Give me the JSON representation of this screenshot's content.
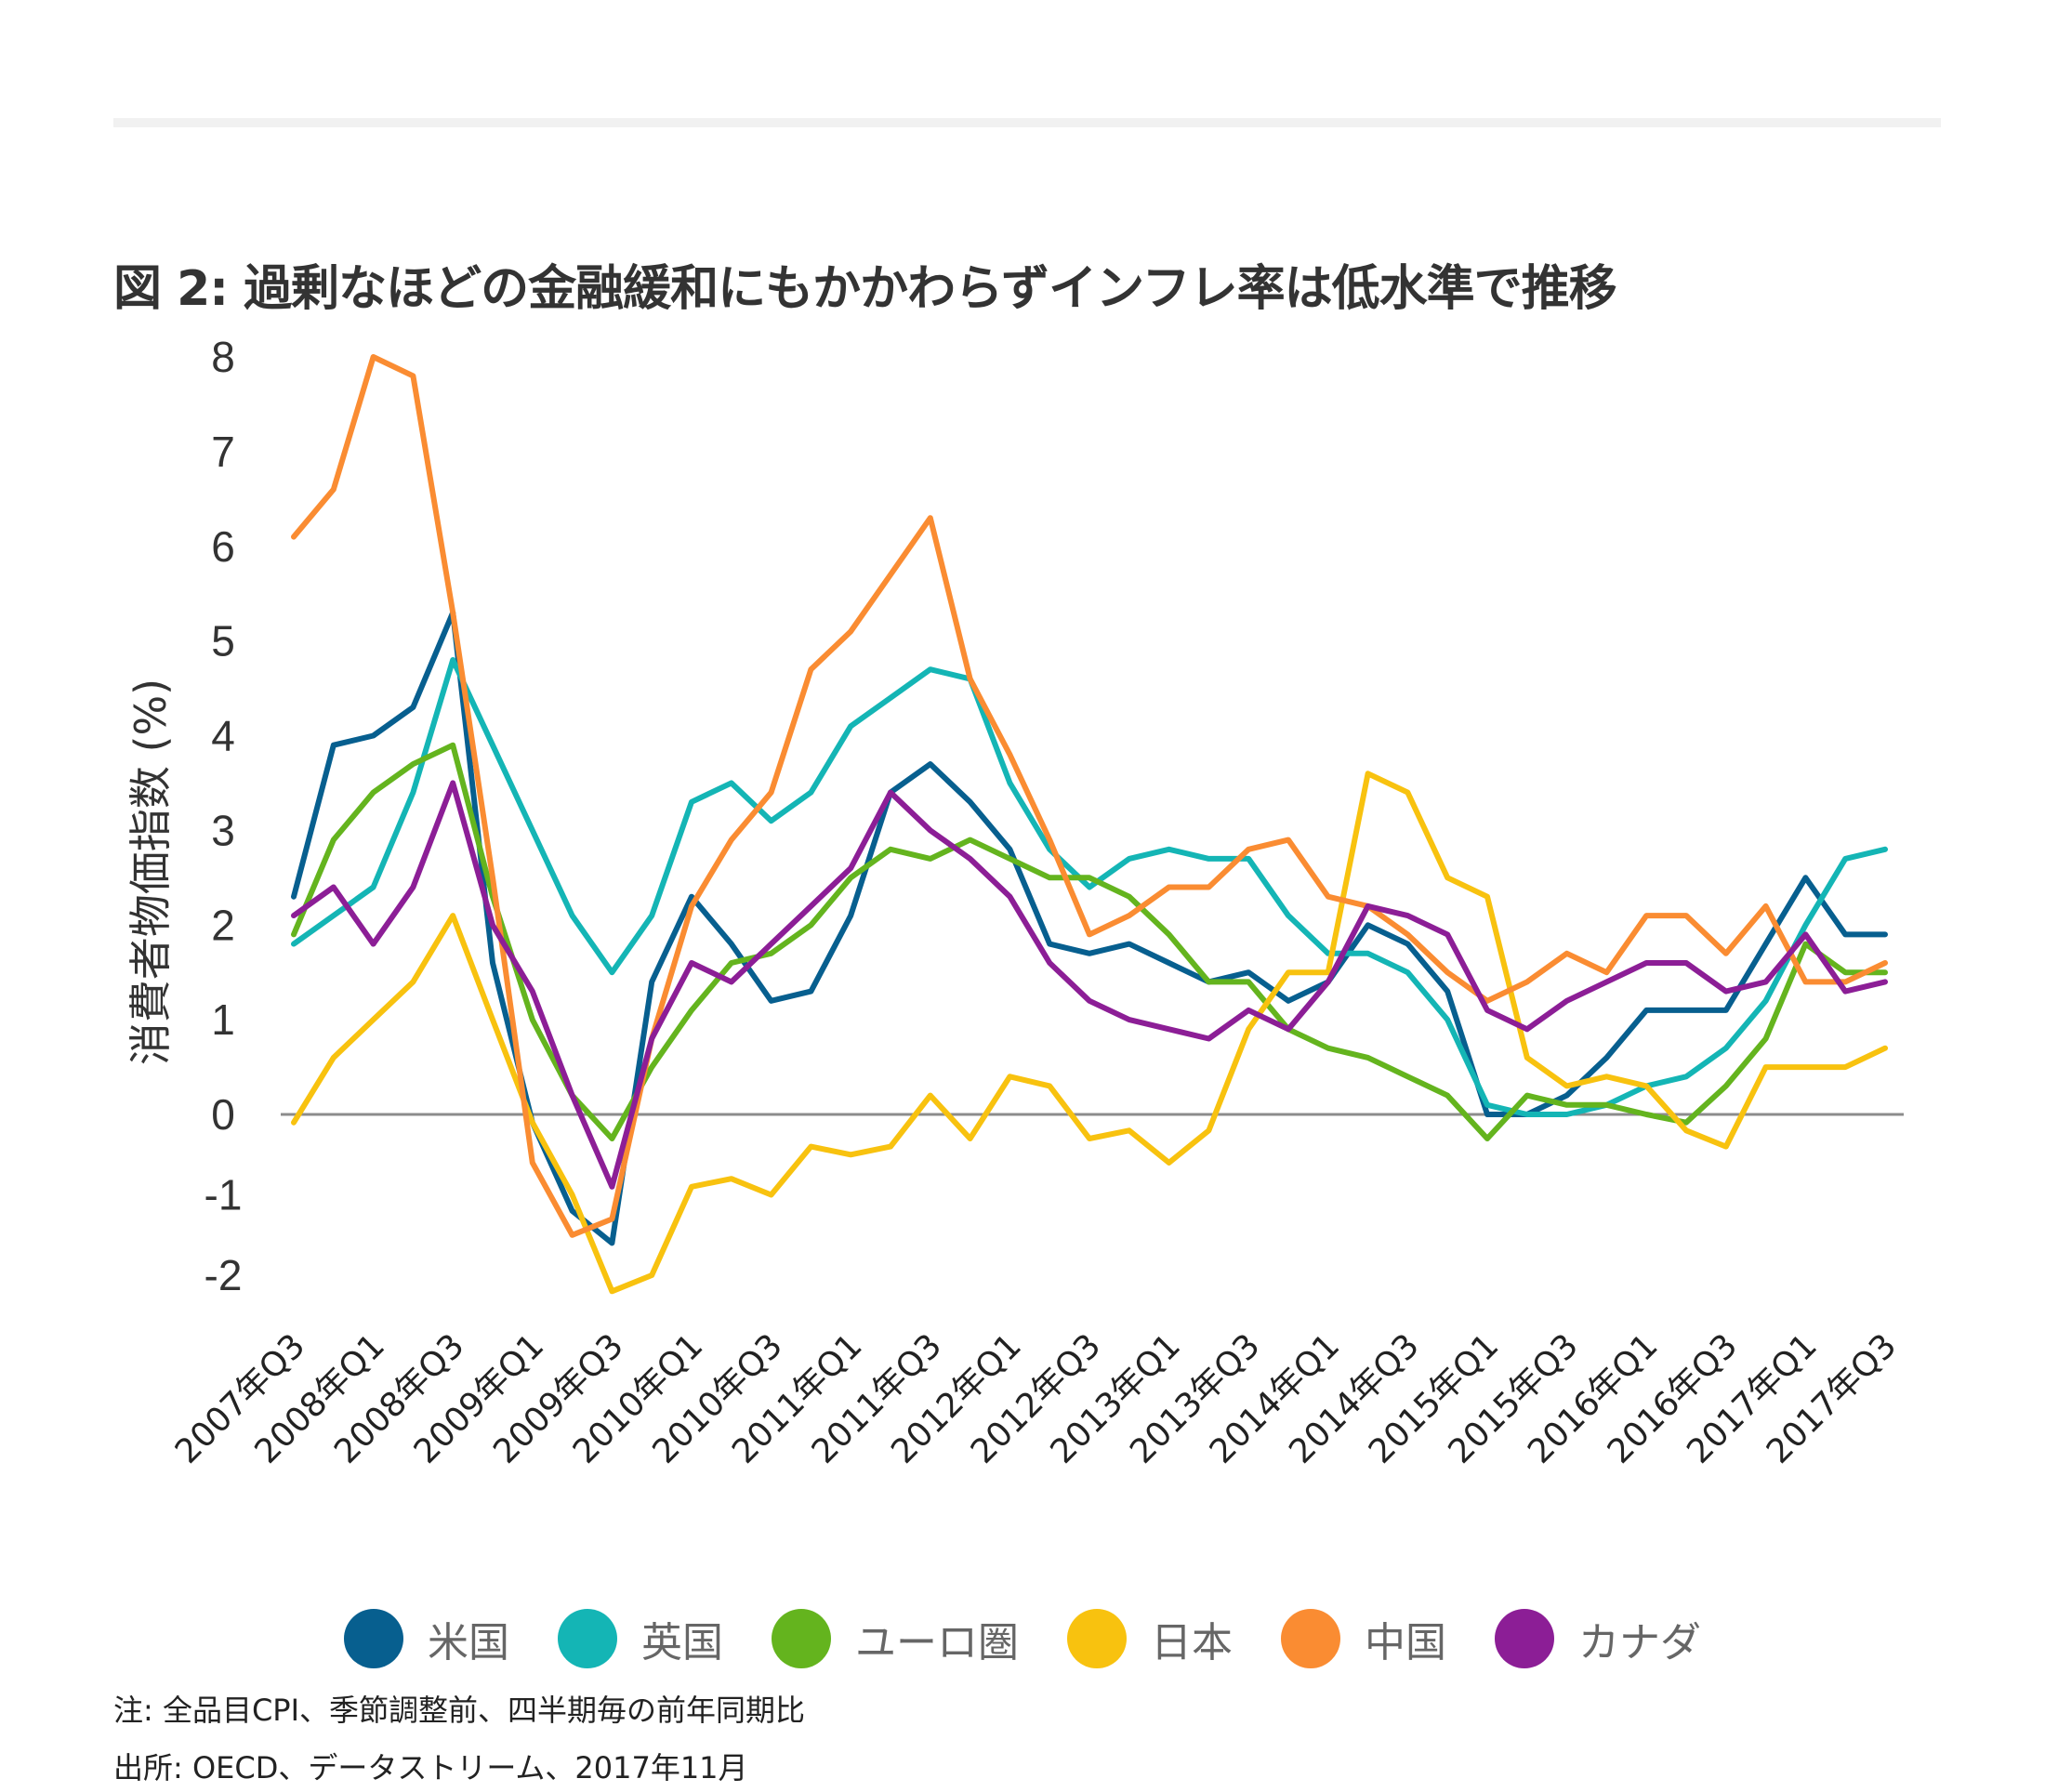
{
  "title": "図 2: 過剰なほどの金融緩和にもかかわらずインフレ率は低水準で推移",
  "note": "注: 全品目CPI、季節調整前、四半期毎の前年同期比",
  "source": "出所: OECD、データストリーム、2017年11月",
  "chart_data": {
    "type": "line",
    "ylabel": "消費者物価指数 (%)",
    "ylim": [
      -2.2,
      8.3
    ],
    "yticks": [
      8,
      7,
      6,
      5,
      4,
      3,
      2,
      1,
      0,
      -1,
      -2
    ],
    "zero_line": true,
    "grid": false,
    "legend_position": "bottom",
    "x": [
      "2007年Q3",
      "2007年Q4",
      "2008年Q1",
      "2008年Q2",
      "2008年Q3",
      "2008年Q4",
      "2009年Q1",
      "2009年Q2",
      "2009年Q3",
      "2009年Q4",
      "2010年Q1",
      "2010年Q2",
      "2010年Q3",
      "2010年Q4",
      "2011年Q1",
      "2011年Q2",
      "2011年Q3",
      "2011年Q4",
      "2012年Q1",
      "2012年Q2",
      "2012年Q3",
      "2012年Q4",
      "2013年Q1",
      "2013年Q2",
      "2013年Q3",
      "2013年Q4",
      "2014年Q1",
      "2014年Q2",
      "2014年Q3",
      "2014年Q4",
      "2015年Q1",
      "2015年Q2",
      "2015年Q3",
      "2015年Q4",
      "2016年Q1",
      "2016年Q2",
      "2016年Q3",
      "2016年Q4",
      "2017年Q1",
      "2017年Q2",
      "2017年Q3"
    ],
    "x_tick_labels": [
      "2007年Q3",
      "2008年Q1",
      "2008年Q3",
      "2009年Q1",
      "2009年Q3",
      "2010年Q1",
      "2010年Q3",
      "2011年Q1",
      "2011年Q3",
      "2012年Q1",
      "2012年Q3",
      "2013年Q1",
      "2013年Q3",
      "2014年Q1",
      "2014年Q3",
      "2015年Q1",
      "2015年Q3",
      "2016年Q1",
      "2016年Q3",
      "2017年Q1",
      "2017年Q3"
    ],
    "series": [
      {
        "name": "米国",
        "color": "#075f8f",
        "values": [
          2.3,
          3.9,
          4.0,
          4.3,
          5.3,
          1.6,
          -0.1,
          -1.2,
          -1.6,
          1.4,
          2.3,
          1.8,
          1.2,
          1.3,
          2.1,
          3.4,
          3.7,
          3.3,
          2.8,
          1.8,
          1.7,
          1.8,
          1.6,
          1.4,
          1.5,
          1.2,
          1.4,
          2.0,
          1.8,
          1.3,
          0.0,
          0.0,
          0.2,
          0.6,
          1.1,
          1.1,
          1.1,
          1.8,
          2.5,
          1.9,
          1.9
        ]
      },
      {
        "name": "英国",
        "color": "#14b5b5",
        "values": [
          1.8,
          2.1,
          2.4,
          3.4,
          4.8,
          3.9,
          3.0,
          2.1,
          1.5,
          2.1,
          3.3,
          3.5,
          3.1,
          3.4,
          4.1,
          4.4,
          4.7,
          4.6,
          3.5,
          2.8,
          2.4,
          2.7,
          2.8,
          2.7,
          2.7,
          2.1,
          1.7,
          1.7,
          1.5,
          1.0,
          0.1,
          0.0,
          0.0,
          0.1,
          0.3,
          0.4,
          0.7,
          1.2,
          2.0,
          2.7,
          2.8
        ]
      },
      {
        "name": "ユーロ圏",
        "color": "#64b41e",
        "values": [
          1.9,
          2.9,
          3.4,
          3.7,
          3.9,
          2.3,
          1.0,
          0.2,
          -0.3,
          0.5,
          1.1,
          1.6,
          1.7,
          2.0,
          2.5,
          2.8,
          2.7,
          2.9,
          2.7,
          2.5,
          2.5,
          2.3,
          1.9,
          1.4,
          1.4,
          0.9,
          0.7,
          0.6,
          0.4,
          0.2,
          -0.3,
          0.2,
          0.1,
          0.1,
          0.0,
          -0.1,
          0.3,
          0.8,
          1.8,
          1.5,
          1.5
        ]
      },
      {
        "name": "日本",
        "color": "#f8c20f",
        "values": [
          -0.1,
          0.6,
          1.0,
          1.4,
          2.1,
          1.0,
          -0.1,
          -1.0,
          -2.2,
          -2.0,
          -0.9,
          -0.8,
          -1.0,
          -0.4,
          -0.5,
          -0.4,
          0.2,
          -0.3,
          0.4,
          0.3,
          -0.3,
          -0.2,
          -0.6,
          -0.2,
          0.9,
          1.5,
          1.5,
          3.6,
          3.4,
          2.5,
          2.3,
          0.6,
          0.3,
          0.4,
          0.3,
          -0.2,
          -0.4,
          0.5,
          0.5,
          0.5,
          0.7
        ]
      },
      {
        "name": "中国",
        "color": "#fa8c32",
        "values": [
          6.1,
          6.6,
          8.0,
          7.8,
          5.3,
          2.5,
          -0.6,
          -1.5,
          -1.3,
          0.8,
          2.2,
          2.9,
          3.4,
          4.7,
          5.1,
          5.7,
          6.3,
          4.6,
          3.8,
          2.9,
          1.9,
          2.1,
          2.4,
          2.4,
          2.8,
          2.9,
          2.3,
          2.2,
          1.9,
          1.5,
          1.2,
          1.4,
          1.7,
          1.5,
          2.1,
          2.1,
          1.7,
          2.2,
          1.4,
          1.4,
          1.6
        ]
      },
      {
        "name": "カナダ",
        "color": "#8c1e96",
        "values": [
          2.1,
          2.4,
          1.8,
          2.4,
          3.5,
          2.0,
          1.3,
          0.2,
          -0.9,
          0.8,
          1.6,
          1.4,
          1.8,
          2.2,
          2.6,
          3.4,
          3.0,
          2.7,
          2.3,
          1.6,
          1.2,
          1.0,
          0.9,
          0.8,
          1.1,
          0.9,
          1.4,
          2.2,
          2.1,
          1.9,
          1.1,
          0.9,
          1.2,
          1.4,
          1.6,
          1.6,
          1.3,
          1.4,
          1.9,
          1.3,
          1.4
        ]
      }
    ]
  }
}
